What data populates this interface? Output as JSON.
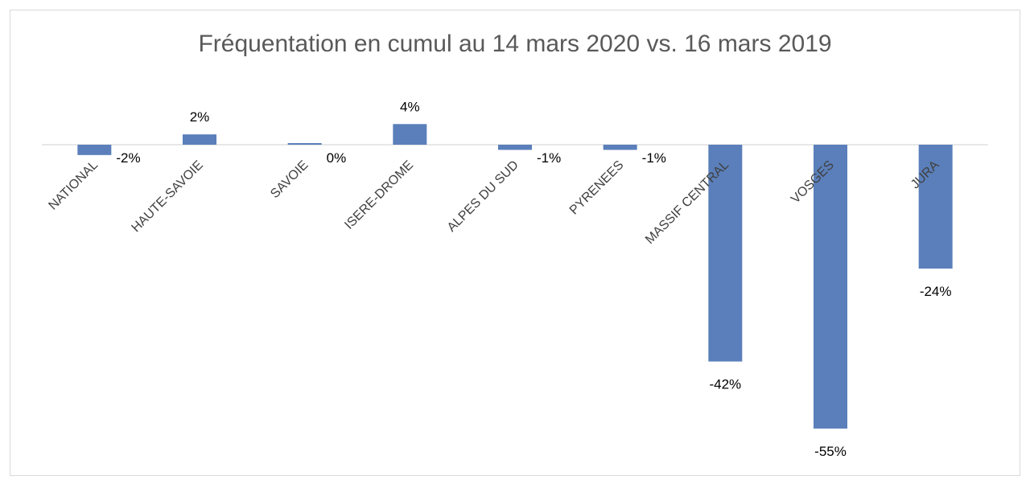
{
  "chart_data": {
    "type": "bar",
    "title": "Fréquentation en cumul au 14 mars 2020 vs. 16 mars 2019",
    "categories": [
      "NATIONAL",
      "HAUTE-SAVOIE",
      "SAVOIE",
      "ISERE-DROME",
      "ALPES DU SUD",
      "PYRENEES",
      "MASSIF CENTRAL",
      "VOSGES",
      "JURA"
    ],
    "values": [
      -2,
      2,
      0,
      4,
      -1,
      -1,
      -42,
      -55,
      -24
    ],
    "data_labels": [
      "-2%",
      "2%",
      "0%",
      "4%",
      "-1%",
      "-1%",
      "-42%",
      "-55%",
      "-24%"
    ],
    "ylim": [
      -55,
      4
    ],
    "grid": false,
    "legend": "none",
    "colors": {
      "bar": "#5a7fba",
      "axis": "#d9d9d9"
    }
  }
}
